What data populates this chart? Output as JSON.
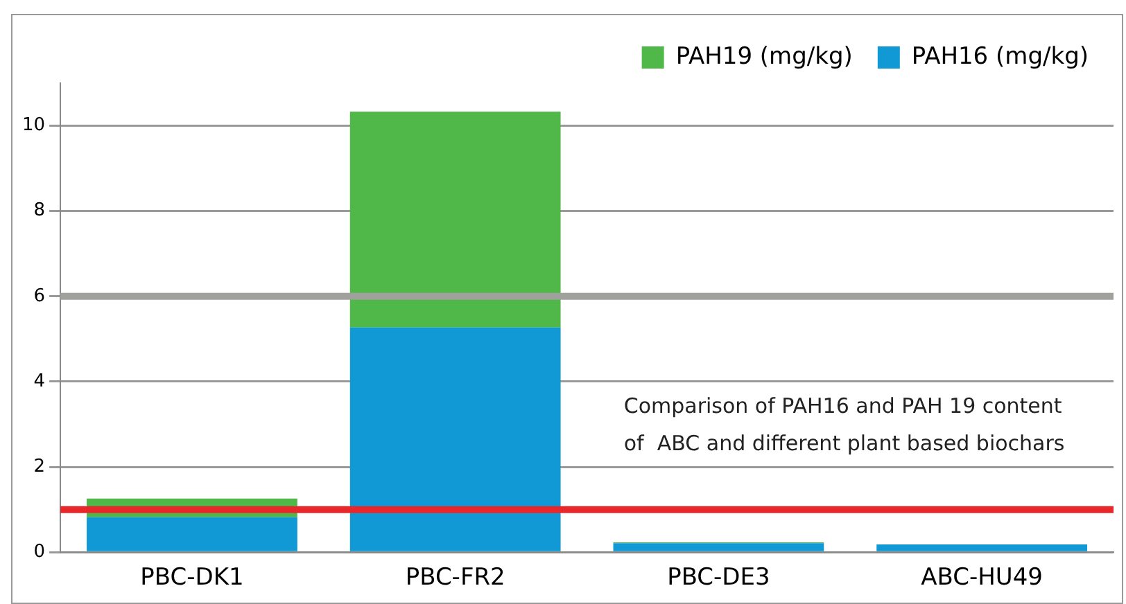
{
  "chart_data": {
    "type": "bar",
    "stacked": true,
    "categories": [
      "PBC-DK1",
      "PBC-FR2",
      "PBC-DE3",
      "ABC-HU49"
    ],
    "series": [
      {
        "name": "PAH16 (mg/kg)",
        "color": "#1199d6",
        "values": [
          0.82,
          5.27,
          0.21,
          0.18
        ]
      },
      {
        "name": "PAH19 (mg/kg)",
        "color": "#50b848",
        "values": [
          0.44,
          5.06,
          0.02,
          0
        ]
      }
    ],
    "ylim": [
      0,
      11
    ],
    "yticks": [
      0,
      2,
      4,
      6,
      8,
      10
    ],
    "grid": "y",
    "legend": "top right",
    "ref_lines": [
      {
        "axis": "y",
        "value": 6,
        "color": "#a0a09c"
      },
      {
        "axis": "y",
        "value": 1,
        "color": "#e8272b"
      }
    ],
    "annotations": [
      "Comparison of PAH16 and PAH 19 content\nof  ABC and different plant based biochars"
    ]
  }
}
